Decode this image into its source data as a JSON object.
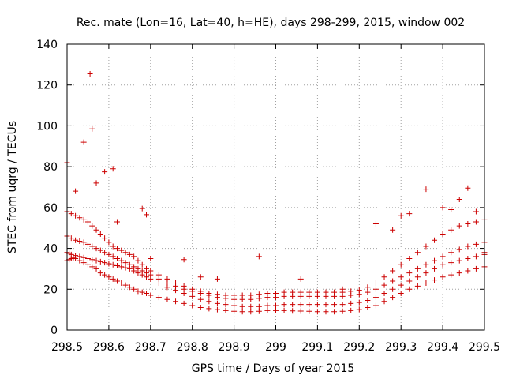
{
  "chart_data": {
    "type": "scatter",
    "title": "Rec. mate (Lon=16, Lat=40, h=HE), days 298-299, 2015, window 002",
    "xlabel": "GPS time / Days of year 2015",
    "ylabel": "STEC from uqrg / TECUs",
    "xlim": [
      298.5,
      299.5
    ],
    "ylim": [
      0,
      140
    ],
    "x_ticks": [
      298.5,
      298.6,
      298.7,
      298.8,
      298.9,
      299,
      299.1,
      299.2,
      299.3,
      299.4,
      299.5
    ],
    "x_tick_labels": [
      "298.5",
      "298.6",
      "298.7",
      "298.8",
      "298.9",
      "299",
      "299.1",
      "299.2",
      "299.3",
      "299.4",
      "299.5"
    ],
    "y_ticks": [
      0,
      20,
      40,
      60,
      80,
      100,
      120,
      140
    ],
    "y_tick_labels": [
      "0",
      "20",
      "40",
      "60",
      "80",
      "100",
      "120",
      "140"
    ],
    "grid": true,
    "marker": "plus",
    "color": "#cc0000",
    "series": [
      {
        "x": [
          298.5,
          298.505,
          298.51,
          298.515,
          298.52,
          298.53,
          298.54,
          298.55,
          298.56,
          298.57,
          298.58,
          298.59,
          298.6,
          298.61,
          298.62,
          298.63,
          298.64,
          298.65,
          298.66,
          298.67,
          298.68,
          298.69,
          298.7,
          298.72,
          298.74,
          298.76,
          298.78,
          298.8,
          298.82,
          298.84,
          298.86,
          298.88,
          298.9,
          298.92,
          298.94,
          298.96,
          298.98,
          299.0,
          299.02,
          299.04,
          299.06,
          299.08,
          299.1,
          299.12,
          299.14,
          299.16,
          299.18,
          299.2,
          299.22,
          299.24,
          299.26,
          299.28,
          299.3,
          299.32,
          299.34,
          299.36,
          299.38,
          299.4,
          299.42,
          299.44,
          299.46,
          299.48,
          299.5
        ],
        "y": [
          34,
          34.5,
          35,
          35.5,
          35,
          34,
          33,
          32,
          31,
          30,
          28,
          27,
          26,
          25,
          24,
          23,
          22,
          21,
          20,
          19,
          18.5,
          18,
          17,
          16,
          15,
          14,
          13,
          12,
          11,
          10.5,
          10,
          9.5,
          9.2,
          9,
          9,
          9.2,
          9.5,
          9.5,
          9.5,
          9.4,
          9.3,
          9.2,
          9,
          9,
          9,
          9.2,
          9.5,
          10,
          11,
          12,
          14,
          16,
          18,
          20,
          21.5,
          23,
          24.5,
          26,
          27,
          28,
          29,
          30,
          31
        ]
      },
      {
        "x": [
          298.5,
          298.505,
          298.51,
          298.52,
          298.53,
          298.54,
          298.55,
          298.56,
          298.57,
          298.58,
          298.59,
          298.6,
          298.61,
          298.62,
          298.63,
          298.64,
          298.65,
          298.66,
          298.67,
          298.68,
          298.69,
          298.7,
          298.72,
          298.74,
          298.76,
          298.78,
          298.8,
          298.82,
          298.84,
          298.86,
          298.88,
          298.9,
          298.92,
          298.94,
          298.96,
          298.98,
          299.0,
          299.02,
          299.04,
          299.06,
          299.08,
          299.1,
          299.12,
          299.14,
          299.16,
          299.18,
          299.2,
          299.22,
          299.24,
          299.26,
          299.28,
          299.3,
          299.32,
          299.34,
          299.36,
          299.38,
          299.4,
          299.42,
          299.44,
          299.46,
          299.48,
          299.5
        ],
        "y": [
          38,
          37.5,
          37,
          36.5,
          36,
          35.5,
          35,
          34.5,
          34,
          33.5,
          33,
          32.5,
          32,
          31.5,
          31,
          30.5,
          30,
          29,
          28,
          27,
          26,
          25,
          23,
          21,
          19.5,
          18,
          16.5,
          15,
          14,
          13,
          12.5,
          12,
          11.5,
          11.5,
          11.5,
          12,
          12,
          12.5,
          12.5,
          12.5,
          12.5,
          12.5,
          12.5,
          12.5,
          12.5,
          13,
          13.5,
          14.5,
          16,
          18,
          20,
          22,
          24,
          26,
          28,
          30,
          32,
          33,
          34,
          35,
          36,
          37
        ]
      },
      {
        "x": [
          298.5,
          298.51,
          298.52,
          298.53,
          298.54,
          298.55,
          298.56,
          298.57,
          298.58,
          298.59,
          298.6,
          298.61,
          298.62,
          298.63,
          298.64,
          298.65,
          298.66,
          298.67,
          298.68,
          298.69,
          298.7,
          298.72,
          298.74,
          298.76,
          298.78,
          298.8,
          298.82,
          298.84,
          298.86,
          298.88,
          298.9,
          298.92,
          298.94,
          298.96,
          298.98,
          299.0,
          299.02,
          299.04,
          299.06,
          299.08,
          299.1,
          299.12,
          299.14,
          299.16,
          299.18,
          299.2,
          299.22,
          299.24,
          299.26,
          299.28,
          299.3,
          299.32,
          299.34,
          299.36,
          299.38,
          299.4,
          299.42,
          299.44,
          299.46,
          299.48,
          299.5
        ],
        "y": [
          46,
          45,
          44,
          43.5,
          43,
          42,
          41,
          40,
          39,
          38,
          37,
          36,
          35,
          34,
          33,
          32,
          31,
          30,
          29,
          28,
          27,
          25,
          23,
          21.5,
          20,
          19,
          18,
          17,
          16,
          15.5,
          15,
          15,
          15,
          15.5,
          16,
          16,
          16.5,
          16.5,
          16.5,
          16.5,
          16.5,
          16.5,
          16.5,
          16.5,
          17,
          17.5,
          18.5,
          20,
          22,
          24,
          26,
          28,
          30,
          32,
          34,
          36,
          38,
          39.5,
          41,
          42,
          43
        ]
      },
      {
        "x": [
          298.5,
          298.51,
          298.52,
          298.53,
          298.54,
          298.55,
          298.56,
          298.57,
          298.58,
          298.59,
          298.6,
          298.61,
          298.62,
          298.63,
          298.64,
          298.65,
          298.66,
          298.67,
          298.68,
          298.69,
          298.7,
          298.72,
          298.74,
          298.76,
          298.78,
          298.8,
          298.82,
          298.84,
          298.86,
          298.88,
          298.9,
          298.92,
          298.94,
          298.96,
          298.98,
          299.0,
          299.02,
          299.04,
          299.06,
          299.08,
          299.1,
          299.12,
          299.14,
          299.16,
          299.18,
          299.2,
          299.22,
          299.24,
          299.26,
          299.28,
          299.3,
          299.32,
          299.34,
          299.36,
          299.38,
          299.4,
          299.42,
          299.44,
          299.46,
          299.48,
          299.5
        ],
        "y": [
          58,
          57,
          56,
          55,
          54,
          53,
          51,
          49,
          47,
          45,
          43,
          41,
          40,
          39,
          38,
          37,
          36,
          34,
          32,
          30,
          29,
          27,
          25,
          23,
          21.5,
          20,
          19,
          18,
          17.5,
          17,
          17,
          17,
          17,
          17.5,
          18,
          18,
          18.5,
          18.5,
          18.5,
          18.5,
          18.5,
          18.5,
          18.5,
          18.5,
          19,
          19.5,
          21,
          23,
          26,
          29,
          32,
          35,
          38,
          41,
          44,
          47,
          49,
          51,
          52,
          53,
          54
        ]
      },
      {
        "x": [
          298.5,
          298.52,
          298.54,
          298.555,
          298.56,
          298.57,
          298.59,
          298.61,
          298.62,
          298.68,
          298.69,
          298.7,
          298.78,
          298.82,
          298.86,
          298.96,
          299.06,
          299.16,
          299.24,
          299.28,
          299.3,
          299.32,
          299.36,
          299.4,
          299.42,
          299.44,
          299.46,
          299.48,
          299.5
        ],
        "y": [
          82,
          68,
          92,
          125.5,
          98.5,
          72,
          77.5,
          79,
          53,
          59.5,
          56.5,
          35,
          34.5,
          26,
          25,
          36,
          25,
          20,
          52,
          49,
          56,
          57,
          69,
          60,
          59,
          64,
          69.5,
          58,
          38
        ]
      }
    ]
  }
}
